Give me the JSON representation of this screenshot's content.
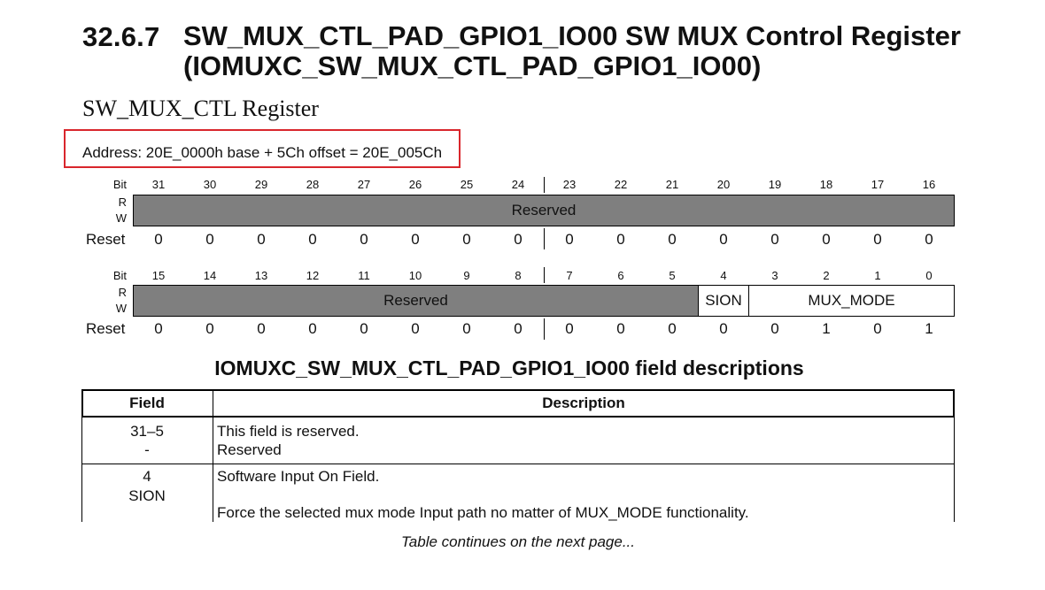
{
  "heading": {
    "number": "32.6.7",
    "title": "SW_MUX_CTL_PAD_GPIO1_IO00 SW MUX Control Register (IOMUXC_SW_MUX_CTL_PAD_GPIO1_IO00)"
  },
  "subtitle": "SW_MUX_CTL Register",
  "address": "Address: 20E_0000h base + 5Ch offset = 20E_005Ch",
  "register": {
    "labels": {
      "bit": "Bit",
      "r": "R",
      "w": "W",
      "reset": "Reset"
    },
    "upper": {
      "bits": [
        "31",
        "30",
        "29",
        "28",
        "27",
        "26",
        "25",
        "24",
        "23",
        "22",
        "21",
        "20",
        "19",
        "18",
        "17",
        "16"
      ],
      "field": "Reserved",
      "reset": [
        "0",
        "0",
        "0",
        "0",
        "0",
        "0",
        "0",
        "0",
        "0",
        "0",
        "0",
        "0",
        "0",
        "0",
        "0",
        "0"
      ]
    },
    "lower": {
      "bits": [
        "15",
        "14",
        "13",
        "12",
        "11",
        "10",
        "9",
        "8",
        "7",
        "6",
        "5",
        "4",
        "3",
        "2",
        "1",
        "0"
      ],
      "fields": {
        "reserved": "Reserved",
        "sion": "SION",
        "mux_mode": "MUX_MODE"
      },
      "reset": [
        "0",
        "0",
        "0",
        "0",
        "0",
        "0",
        "0",
        "0",
        "0",
        "0",
        "0",
        "0",
        "0",
        "1",
        "0",
        "1"
      ]
    }
  },
  "table": {
    "title": "IOMUXC_SW_MUX_CTL_PAD_GPIO1_IO00 field descriptions",
    "headers": {
      "field": "Field",
      "description": "Description"
    },
    "rows": [
      {
        "field_bits": "31–5",
        "field_name": "-",
        "desc_line1": "This field is reserved.",
        "desc_line2": "Reserved"
      },
      {
        "field_bits": "4",
        "field_name": "SION",
        "desc_line1": "Software Input On Field.",
        "desc_line2": "Force the selected mux mode Input path no matter of MUX_MODE functionality."
      }
    ]
  },
  "footer": "Table continues on the next page..."
}
